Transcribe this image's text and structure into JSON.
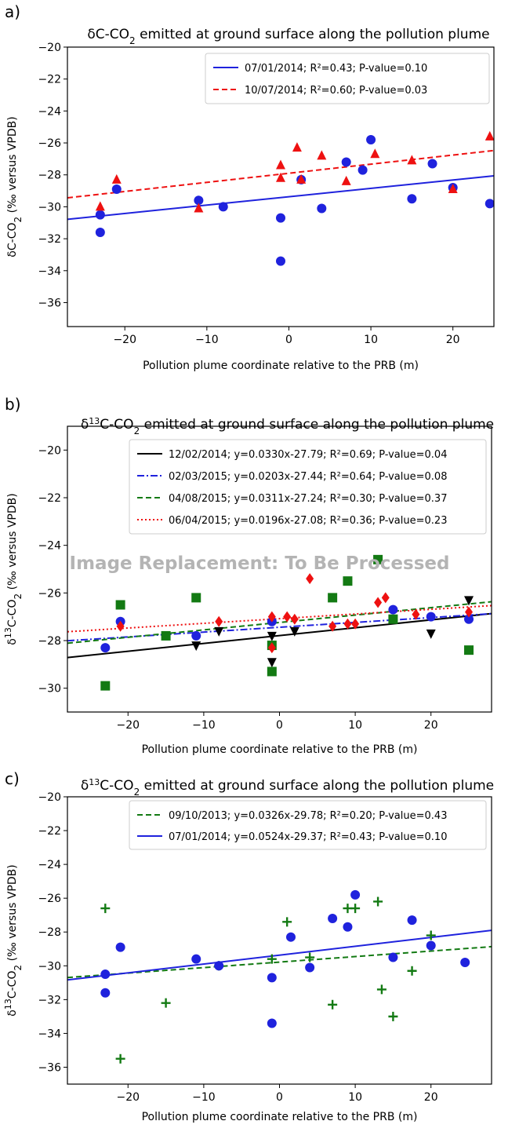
{
  "overlay_text": "Image Replacement: To Be Processed",
  "chart_data": [
    {
      "type": "scatter",
      "panel_label": "a)",
      "title": "δC-CO₂ emitted at ground surface along the pollution plume",
      "xlabel": "Pollution plume coordinate relative to the PRB (m)",
      "ylabel": "δC-CO₂ (‰ versus VPDB)",
      "xlim": [
        -27,
        25
      ],
      "ylim": [
        -37.5,
        -20
      ],
      "xticks": [
        -20,
        -10,
        0,
        10,
        20
      ],
      "yticks": [
        -20,
        -22,
        -24,
        -26,
        -28,
        -30,
        -32,
        -34,
        -36
      ],
      "legend_position": "top-right",
      "grid": false,
      "series": [
        {
          "name": "07/01/2014;  R²=0.43; P-value=0.10",
          "marker": "circle",
          "color": "#1f22dd",
          "line_style": "solid",
          "fit": {
            "slope": 0.0524,
            "intercept": -29.37
          },
          "x": [
            -23,
            -23,
            -21,
            -11,
            -8,
            -1,
            -1,
            1.5,
            4,
            7,
            9,
            10,
            15,
            17.5,
            20,
            24.5
          ],
          "y": [
            -30.5,
            -31.6,
            -28.9,
            -29.6,
            -30.0,
            -30.7,
            -33.4,
            -28.3,
            -30.1,
            -27.2,
            -27.7,
            -25.8,
            -29.5,
            -27.3,
            -28.8,
            -29.8
          ]
        },
        {
          "name": "10/07/2014;  R²=0.60; P-value=0.03",
          "marker": "triangle-up",
          "color": "#ee1111",
          "line_style": "dashed",
          "fit": {
            "slope": 0.057,
            "intercept": -27.9
          },
          "x": [
            -23,
            -21,
            -11,
            -1,
            -1,
            1,
            1.5,
            4,
            7,
            10.5,
            15,
            20,
            24.5
          ],
          "y": [
            -30.0,
            -28.3,
            -30.1,
            -28.2,
            -27.4,
            -26.3,
            -28.3,
            -26.8,
            -28.4,
            -26.7,
            -27.1,
            -28.9,
            -25.6
          ]
        }
      ]
    },
    {
      "type": "scatter",
      "panel_label": "b)",
      "title": "δ¹³C-CO₂ emitted at ground surface along the pollution plume",
      "xlabel": "Pollution plume coordinate relative to the PRB (m)",
      "ylabel": "δ¹³C-CO₂ (‰ versus VPDB)",
      "xlim": [
        -28,
        28
      ],
      "ylim": [
        -31,
        -19
      ],
      "xticks": [
        -20,
        -10,
        0,
        10,
        20
      ],
      "yticks": [
        -20,
        -22,
        -24,
        -26,
        -28,
        -30
      ],
      "legend_position": "top-right",
      "grid": false,
      "series": [
        {
          "name": "12/02/2014; y=0.0330x-27.79; R²=0.69; P-value=0.04",
          "marker": "triangle-down",
          "color": "#000000",
          "line_style": "solid",
          "fit": {
            "slope": 0.033,
            "intercept": -27.79
          },
          "x": [
            -11,
            -8,
            -1,
            -1,
            2,
            20,
            25
          ],
          "y": [
            -28.2,
            -27.6,
            -27.8,
            -28.9,
            -27.6,
            -27.7,
            -26.3
          ]
        },
        {
          "name": "02/03/2015; y=0.0203x-27.44; R²=0.64; P-value=0.08",
          "marker": "circle",
          "color": "#1f22dd",
          "line_style": "dashdot",
          "fit": {
            "slope": 0.0203,
            "intercept": -27.44
          },
          "x": [
            -23,
            -21,
            -11,
            -1,
            15,
            20,
            25
          ],
          "y": [
            -28.3,
            -27.2,
            -27.8,
            -27.2,
            -26.7,
            -27.0,
            -27.1
          ]
        },
        {
          "name": "04/08/2015; y=0.0311x-27.24; R²=0.30; P-value=0.37",
          "marker": "square",
          "color": "#137a13",
          "line_style": "dashed",
          "fit": {
            "slope": 0.0311,
            "intercept": -27.24
          },
          "x": [
            -23,
            -21,
            -15,
            -11,
            -1,
            -1,
            7,
            9,
            13,
            15,
            25
          ],
          "y": [
            -29.9,
            -26.5,
            -27.8,
            -26.2,
            -28.2,
            -29.3,
            -26.2,
            -25.5,
            -24.6,
            -27.1,
            -28.4
          ]
        },
        {
          "name": "06/04/2015; y=0.0196x-27.08; R²=0.36; P-value=0.23",
          "marker": "diamond",
          "color": "#ee1111",
          "line_style": "dotted",
          "fit": {
            "slope": 0.0196,
            "intercept": -27.08
          },
          "x": [
            -21,
            -8,
            -1,
            -1,
            1,
            2,
            4,
            7,
            9,
            10,
            13,
            14,
            18,
            25
          ],
          "y": [
            -27.4,
            -27.2,
            -27.0,
            -28.3,
            -27.0,
            -27.1,
            -25.4,
            -27.4,
            -27.3,
            -27.3,
            -26.4,
            -26.2,
            -26.9,
            -26.8
          ]
        }
      ]
    },
    {
      "type": "scatter",
      "panel_label": "c)",
      "title": "δ¹³C-CO₂ emitted at ground surface along the pollution plume",
      "xlabel": "Pollution plume coordinate relative to the PRB (m)",
      "ylabel": "δ¹³C-CO₂ (‰ versus VPDB)",
      "xlim": [
        -28,
        28
      ],
      "ylim": [
        -37,
        -20
      ],
      "xticks": [
        -20,
        -10,
        0,
        10,
        20
      ],
      "yticks": [
        -20,
        -22,
        -24,
        -26,
        -28,
        -30,
        -32,
        -34,
        -36
      ],
      "legend_position": "top-right",
      "grid": false,
      "series": [
        {
          "name": "09/10/2013; y=0.0326x-29.78; R²=0.20; P-value=0.43",
          "marker": "plus",
          "color": "#137a13",
          "line_style": "dashed",
          "fit": {
            "slope": 0.0326,
            "intercept": -29.78
          },
          "x": [
            -23,
            -21,
            -15,
            -8,
            -1,
            1,
            4,
            7,
            9,
            10,
            13,
            13.5,
            15,
            17.5,
            20
          ],
          "y": [
            -26.6,
            -35.5,
            -32.2,
            -30.0,
            -29.6,
            -27.4,
            -29.5,
            -32.3,
            -26.6,
            -26.6,
            -26.2,
            -31.4,
            -33.0,
            -30.3,
            -28.2
          ]
        },
        {
          "name": "07/01/2014; y=0.0524x-29.37; R²=0.43; P-value=0.10",
          "marker": "circle",
          "color": "#1f22dd",
          "line_style": "solid",
          "fit": {
            "slope": 0.0524,
            "intercept": -29.37
          },
          "x": [
            -23,
            -23,
            -21,
            -11,
            -8,
            -1,
            -1,
            1.5,
            4,
            7,
            9,
            10,
            15,
            17.5,
            20,
            24.5
          ],
          "y": [
            -30.5,
            -31.6,
            -28.9,
            -29.6,
            -30.0,
            -30.7,
            -33.4,
            -28.3,
            -30.1,
            -27.2,
            -27.7,
            -25.8,
            -29.5,
            -27.3,
            -28.8,
            -29.8
          ]
        }
      ]
    }
  ]
}
